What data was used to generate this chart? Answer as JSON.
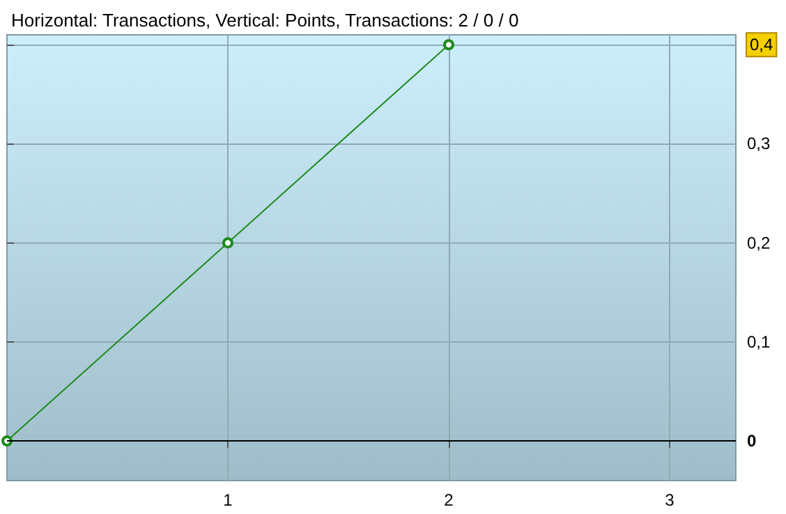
{
  "chart_data": {
    "type": "line",
    "title": "Horizontal: Transactions, Vertical: Points, Transactions: 2 / 0 / 0",
    "x": [
      0,
      1,
      2
    ],
    "series": [
      {
        "color": "#1f8a1f",
        "values": [
          0,
          0.2,
          0.4
        ]
      }
    ],
    "xlim": [
      0,
      3.3
    ],
    "xticks": [
      1,
      2,
      3
    ],
    "ylim": [
      -0.04,
      0.41
    ],
    "yticks": [
      {
        "value": 0,
        "label": "0"
      },
      {
        "value": 0.1,
        "label": "0,1"
      },
      {
        "value": 0.2,
        "label": "0,2"
      },
      {
        "value": 0.3,
        "label": "0,3"
      },
      {
        "value": 0.4,
        "label": "0,4"
      }
    ],
    "ref_lines": [
      {
        "axis": "y",
        "value": 0,
        "color": "#000000"
      }
    ],
    "grid": true,
    "marker": "circle",
    "line_style": "solid"
  }
}
